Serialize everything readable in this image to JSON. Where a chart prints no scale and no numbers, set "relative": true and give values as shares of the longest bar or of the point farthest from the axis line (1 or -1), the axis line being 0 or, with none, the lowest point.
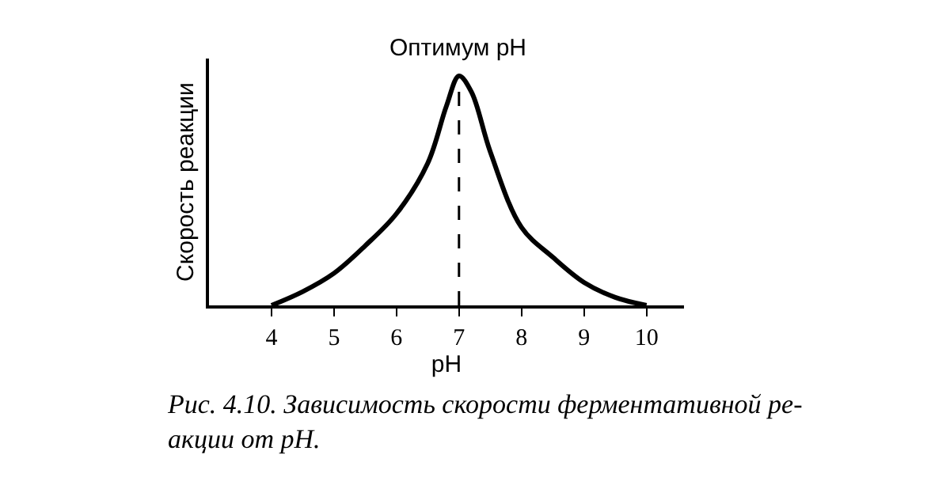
{
  "chart_data": {
    "type": "line",
    "relative": true,
    "xlabel": "pH",
    "ylabel": "Скорость реакции",
    "color": "#000000",
    "x": [
      4,
      4.5,
      5,
      5.5,
      6,
      6.5,
      6.8,
      7,
      7.2,
      7.5,
      8,
      8.5,
      9,
      9.5,
      10
    ],
    "values": [
      0,
      0.06,
      0.14,
      0.26,
      0.4,
      0.62,
      0.87,
      1,
      0.93,
      0.67,
      0.34,
      0.21,
      0.1,
      0.035,
      0
    ],
    "xlim": [
      3,
      10.6
    ],
    "xticks": [
      4,
      5,
      6,
      7,
      8,
      9,
      10
    ],
    "ref_lines": [
      {
        "axis": "x",
        "value": 7,
        "label": "Оптимум pH",
        "line_style": "dashed",
        "color": "#000000"
      }
    ],
    "annotations": [
      "Рис. 4.10. Зависимость скорости ферментативной ре-\nакции от pH."
    ],
    "legend": false,
    "marker": "none",
    "line_style": "solid"
  }
}
